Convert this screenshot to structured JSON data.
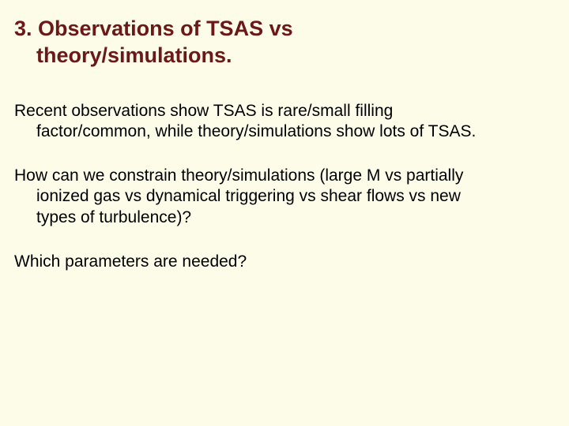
{
  "slide": {
    "background_color": "#fcfce8",
    "title": {
      "line1": "3. Observations of TSAS vs",
      "line2": "theory/simulations.",
      "color": "#6b1818",
      "font_size_pt": 27,
      "font_weight": "bold"
    },
    "paragraphs": [
      {
        "line1": "Recent observations show TSAS is rare/small filling",
        "line2": "factor/common, while theory/simulations show lots of TSAS."
      },
      {
        "line1": "How can we constrain theory/simulations (large M vs partially",
        "line2": "ionized gas vs dynamical triggering vs shear flows vs new",
        "line3": "types of turbulence)?"
      },
      {
        "line1": "Which parameters are needed?"
      }
    ],
    "body_color": "#000000",
    "body_font_size_pt": 21
  }
}
